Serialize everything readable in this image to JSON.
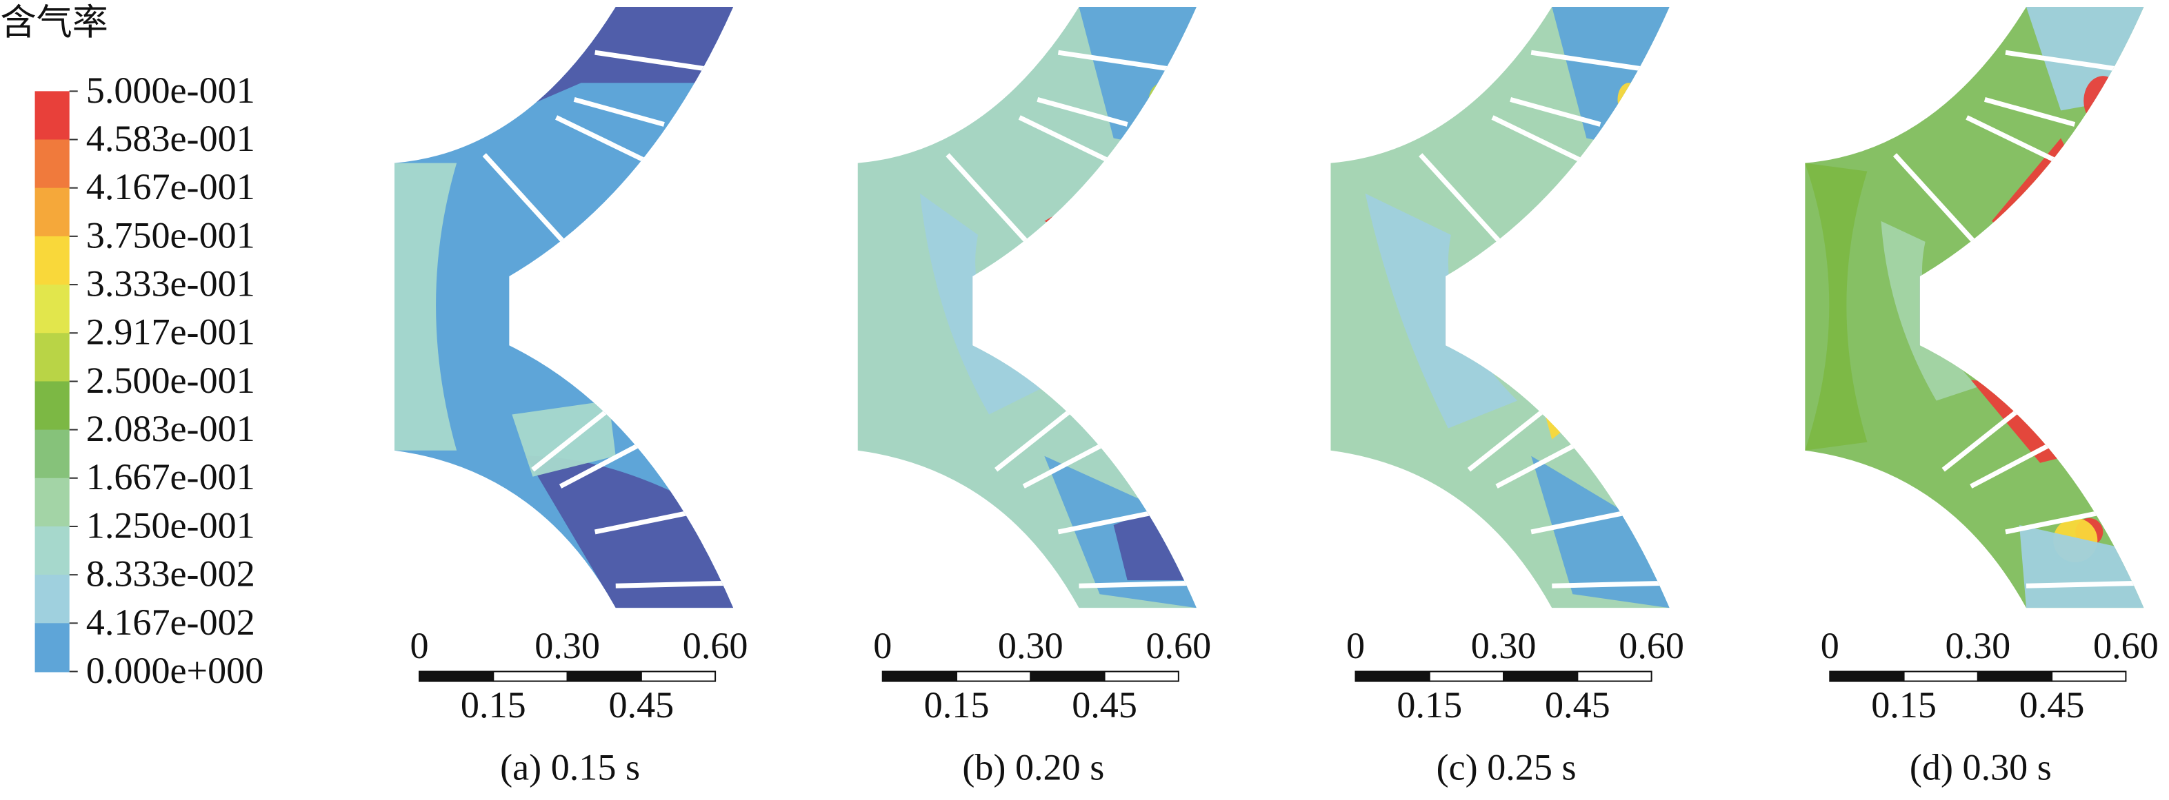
{
  "legend": {
    "title": "含气率",
    "labels": [
      "5.000e-001",
      "4.583e-001",
      "4.167e-001",
      "3.750e-001",
      "3.333e-001",
      "2.917e-001",
      "2.500e-001",
      "2.083e-001",
      "1.667e-001",
      "1.250e-001",
      "8.333e-002",
      "4.167e-002",
      "0.000e+000"
    ]
  },
  "panels": [
    {
      "caption": "(a) 0.15 s",
      "scale_top": [
        "0",
        "0.30",
        "0.60"
      ],
      "scale_bottom": [
        "0.15",
        "0.45"
      ]
    },
    {
      "caption": "(b) 0.20 s",
      "scale_top": [
        "0",
        "0.30",
        "0.60"
      ],
      "scale_bottom": [
        "0.15",
        "0.45"
      ]
    },
    {
      "caption": "(c) 0.25 s",
      "scale_top": [
        "0",
        "0.30",
        "0.60"
      ],
      "scale_bottom": [
        "0.15",
        "0.45"
      ]
    },
    {
      "caption": "(d) 0.30 s",
      "scale_top": [
        "0",
        "0.30",
        "0.60"
      ],
      "scale_bottom": [
        "0.15",
        "0.45"
      ]
    }
  ]
}
